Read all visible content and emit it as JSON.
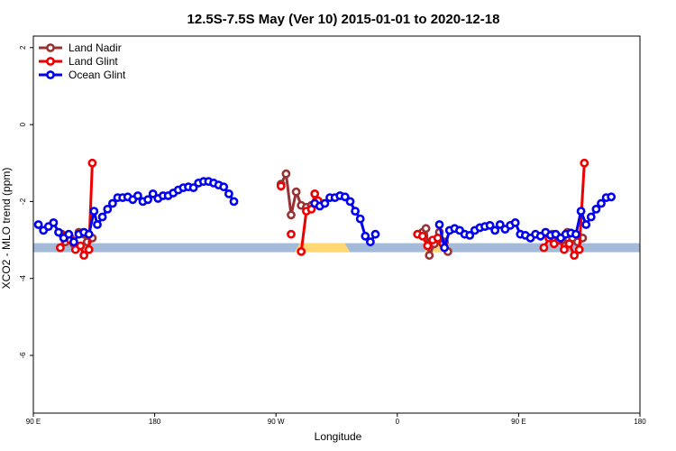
{
  "chart_data": {
    "type": "line",
    "title": "12.5S-7.5S May (Ver 10)   2015-01-01 to 2020-12-18",
    "xlabel": "Longitude",
    "ylabel": "XCO2 - MLO trend (ppm)",
    "xlim": [
      90,
      450
    ],
    "ylim": [
      -7.5,
      2.3
    ],
    "x_ticks": [
      {
        "value": 90,
        "label": "90 E"
      },
      {
        "value": 162,
        "label": "180"
      },
      {
        "value": 234,
        "label": "90 W"
      },
      {
        "value": 306,
        "label": "0"
      },
      {
        "value": 378,
        "label": "90 E"
      },
      {
        "value": 450,
        "label": "180"
      }
    ],
    "y_ticks": [
      {
        "value": 2,
        "label": "2"
      },
      {
        "value": 0,
        "label": "0"
      },
      {
        "value": -2,
        "label": "-2"
      },
      {
        "value": -4,
        "label": "-4"
      },
      {
        "value": -6,
        "label": "-6"
      }
    ],
    "grid": false,
    "legend_position": "top-left",
    "land_band": {
      "y": -3.2,
      "color": "#a3bbd9",
      "land_color": "#ffd873",
      "land_segments": [
        [
          245,
          278
        ],
        [
          322,
          336
        ]
      ]
    },
    "series": [
      {
        "name": "Land Nadir",
        "color": "#993333",
        "segments": [
          [
            [
              107,
              -2.85
            ],
            [
              109,
              -3.05
            ],
            [
              112,
              -2.95
            ],
            [
              114,
              -3.1
            ],
            [
              117,
              -2.8
            ],
            [
              120,
              -2.85
            ],
            [
              122,
              -3.05
            ],
            [
              125,
              -2.95
            ]
          ],
          [
            [
              398,
              -2.85
            ],
            [
              401,
              -2.9
            ],
            [
              404,
              -3.0
            ],
            [
              407,
              -2.8
            ],
            [
              410,
              -2.95
            ],
            [
              413,
              -3.05
            ],
            [
              416,
              -2.95
            ]
          ],
          [
            [
              237,
              -1.55
            ],
            [
              240,
              -1.28
            ],
            [
              243,
              -2.35
            ],
            [
              246,
              -1.75
            ],
            [
              249,
              -2.1
            ],
            [
              252,
              -2.15
            ],
            [
              255,
              -2.1
            ]
          ],
          [
            [
              321,
              -2.8
            ],
            [
              323,
              -2.7
            ],
            [
              325,
              -3.4
            ],
            [
              328,
              -3.1
            ],
            [
              331,
              -2.8
            ],
            [
              334,
              -3.05
            ],
            [
              336,
              -3.3
            ]
          ]
        ]
      },
      {
        "name": "Land Glint",
        "color": "#ee0000",
        "segments": [
          [
            [
              106,
              -3.2
            ],
            [
              109,
              -2.9
            ],
            [
              112,
              -3.0
            ],
            [
              115,
              -3.25
            ],
            [
              118,
              -3.15
            ],
            [
              120,
              -3.4
            ],
            [
              123,
              -3.25
            ],
            [
              125,
              -1.0
            ]
          ],
          [
            [
              393,
              -3.2
            ],
            [
              396,
              -2.95
            ],
            [
              399,
              -3.1
            ],
            [
              402,
              -3.0
            ],
            [
              405,
              -3.25
            ],
            [
              408,
              -3.1
            ],
            [
              411,
              -3.4
            ],
            [
              414,
              -3.25
            ],
            [
              417,
              -1.0
            ]
          ],
          [
            [
              237,
              -1.6
            ]
          ],
          [
            [
              243,
              -2.85
            ]
          ],
          [
            [
              249,
              -3.3
            ],
            [
              252,
              -2.25
            ],
            [
              255,
              -2.2
            ],
            [
              257,
              -1.8
            ],
            [
              259,
              -1.98
            ]
          ],
          [
            [
              318,
              -2.85
            ],
            [
              321,
              -2.9
            ],
            [
              324,
              -3.15
            ],
            [
              327,
              -3.0
            ],
            [
              330,
              -2.95
            ],
            [
              333,
              -3.1
            ]
          ]
        ]
      },
      {
        "name": "Ocean Glint",
        "color": "#0000ee",
        "segments": [
          [
            [
              93,
              -2.6
            ],
            [
              96,
              -2.75
            ],
            [
              99,
              -2.65
            ],
            [
              102,
              -2.55
            ],
            [
              105,
              -2.8
            ],
            [
              108,
              -2.95
            ],
            [
              111,
              -2.85
            ],
            [
              114,
              -3.05
            ],
            [
              117,
              -2.85
            ],
            [
              120,
              -2.8
            ],
            [
              123,
              -2.85
            ],
            [
              126,
              -2.25
            ],
            [
              128,
              -2.6
            ],
            [
              131,
              -2.4
            ],
            [
              134,
              -2.2
            ],
            [
              137,
              -2.05
            ],
            [
              140,
              -1.9
            ],
            [
              143,
              -1.9
            ],
            [
              146,
              -1.88
            ],
            [
              149,
              -1.95
            ],
            [
              152,
              -1.85
            ],
            [
              155,
              -2.0
            ],
            [
              158,
              -1.95
            ],
            [
              161,
              -1.8
            ],
            [
              164,
              -1.92
            ],
            [
              167,
              -1.85
            ],
            [
              170,
              -1.85
            ],
            [
              173,
              -1.78
            ],
            [
              176,
              -1.7
            ],
            [
              179,
              -1.64
            ],
            [
              182,
              -1.62
            ],
            [
              185,
              -1.64
            ],
            [
              188,
              -1.52
            ],
            [
              191,
              -1.48
            ],
            [
              194,
              -1.48
            ],
            [
              197,
              -1.52
            ],
            [
              200,
              -1.57
            ],
            [
              203,
              -1.62
            ],
            [
              206,
              -1.8
            ],
            [
              209,
              -2.0
            ]
          ],
          [
            [
              257,
              -2.05
            ],
            [
              260,
              -2.12
            ],
            [
              263,
              -2.05
            ],
            [
              266,
              -1.9
            ],
            [
              269,
              -1.9
            ],
            [
              272,
              -1.85
            ],
            [
              275,
              -1.88
            ],
            [
              278,
              -2.0
            ],
            [
              281,
              -2.25
            ],
            [
              284,
              -2.45
            ],
            [
              287,
              -2.9
            ],
            [
              290,
              -3.05
            ],
            [
              293,
              -2.85
            ]
          ],
          [
            [
              331,
              -2.6
            ],
            [
              334,
              -3.2
            ],
            [
              337,
              -2.75
            ],
            [
              340,
              -2.7
            ],
            [
              343,
              -2.75
            ],
            [
              346,
              -2.85
            ],
            [
              349,
              -2.88
            ],
            [
              352,
              -2.75
            ],
            [
              355,
              -2.68
            ],
            [
              358,
              -2.65
            ],
            [
              361,
              -2.62
            ],
            [
              364,
              -2.75
            ],
            [
              367,
              -2.6
            ],
            [
              370,
              -2.72
            ],
            [
              373,
              -2.62
            ],
            [
              376,
              -2.55
            ],
            [
              379,
              -2.85
            ],
            [
              382,
              -2.88
            ],
            [
              385,
              -2.95
            ],
            [
              388,
              -2.85
            ],
            [
              391,
              -2.9
            ],
            [
              394,
              -2.8
            ],
            [
              397,
              -2.88
            ],
            [
              400,
              -2.85
            ],
            [
              403,
              -2.95
            ],
            [
              406,
              -2.85
            ],
            [
              409,
              -2.82
            ],
            [
              412,
              -2.85
            ],
            [
              415,
              -2.25
            ],
            [
              418,
              -2.6
            ],
            [
              421,
              -2.4
            ],
            [
              424,
              -2.2
            ],
            [
              427,
              -2.05
            ],
            [
              430,
              -1.9
            ],
            [
              433,
              -1.88
            ]
          ]
        ]
      }
    ]
  }
}
